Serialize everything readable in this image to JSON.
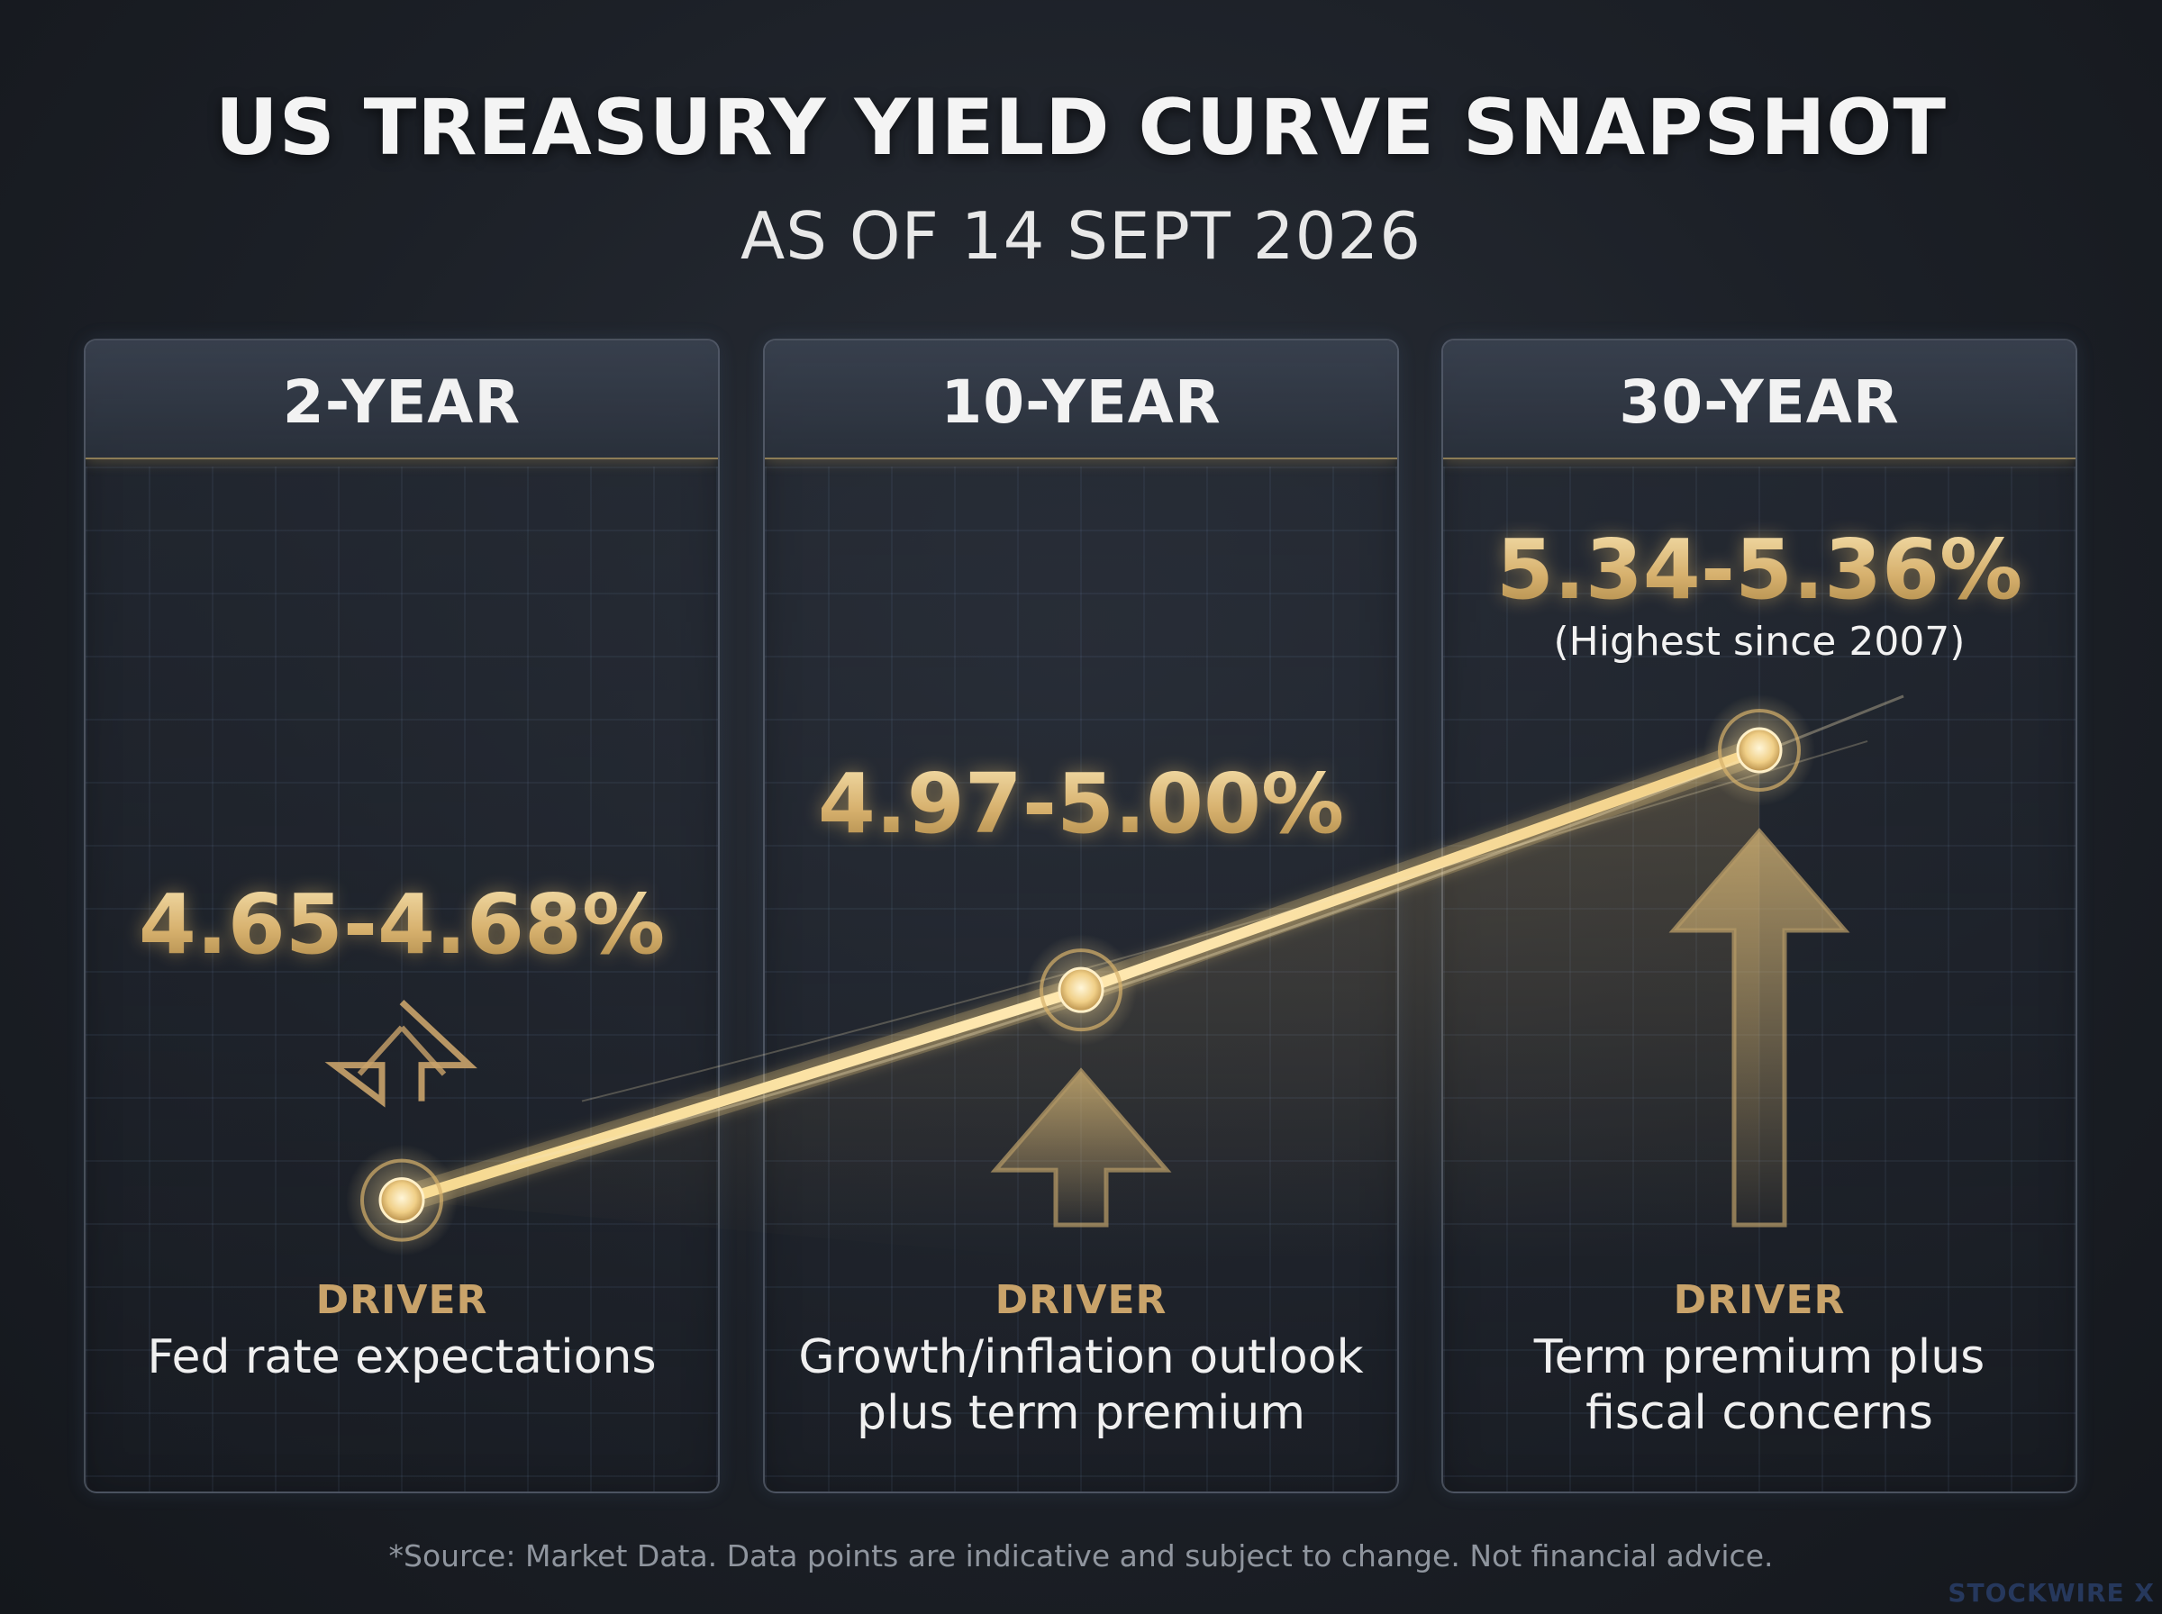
{
  "header": {
    "title": "US TREASURY YIELD CURVE SNAPSHOT",
    "subtitle": "AS OF 14 SEPT 2026"
  },
  "panels": [
    {
      "label": "2-YEAR",
      "driver_heading": "DRIVER",
      "driver_lines": [
        "Fed rate expectations"
      ]
    },
    {
      "label": "10-YEAR",
      "driver_heading": "DRIVER",
      "driver_lines": [
        "Growth/inflation outlook",
        "plus term premium"
      ]
    },
    {
      "label": "30-YEAR",
      "driver_heading": "DRIVER",
      "driver_lines": [
        "Term premium plus",
        "fiscal concerns"
      ]
    }
  ],
  "chart_data": {
    "type": "line",
    "title": "US TREASURY YIELD CURVE SNAPSHOT",
    "subtitle": "AS OF 14 SEPT 2026",
    "categories": [
      "2-YEAR",
      "10-YEAR",
      "30-YEAR"
    ],
    "series": [
      {
        "values": [
          4.665,
          4.985,
          5.35
        ],
        "ranges": [
          [
            4.65,
            4.68
          ],
          [
            4.97,
            5.0
          ],
          [
            5.34,
            5.36
          ]
        ]
      }
    ],
    "data_labels": [
      "4.65-4.68%",
      "4.97-5.00%",
      "5.34-5.36%"
    ],
    "annotations": [
      "(Highest since 2007)"
    ],
    "grid": true,
    "legend": "none"
  },
  "footer": {
    "source": "*Source: Market Data. Data points are indicative and subject to change. Not financial advice.",
    "watermark": "STOCKWIRE X"
  },
  "colors": {
    "accent_gold": "#d9b46e",
    "glow_gold": "#ffe7a8",
    "driver_gold": "#c9a36a",
    "background": "#1c2027"
  }
}
